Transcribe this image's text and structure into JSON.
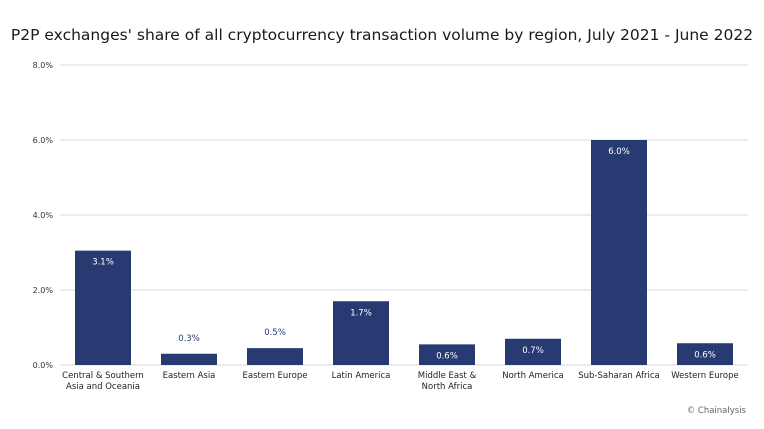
{
  "chart_data": {
    "type": "bar",
    "title": "P2P exchanges' share of all cryptocurrency transaction volume by region, July 2021 - June 2022",
    "categories": [
      "Central & Southern Asia and Oceania",
      "Eastern Asia",
      "Eastern Europe",
      "Latin America",
      "Middle East & North Africa",
      "North America",
      "Sub-Saharan Africa",
      "Western Europe"
    ],
    "category_lines": [
      [
        "Central & Southern",
        "Asia and Oceania"
      ],
      [
        "Eastern Asia"
      ],
      [
        "Eastern Europe"
      ],
      [
        "Latin America"
      ],
      [
        "Middle East &",
        "North Africa"
      ],
      [
        "North America"
      ],
      [
        "Sub-Saharan Africa"
      ],
      [
        "Western Europe"
      ]
    ],
    "values": [
      3.05,
      0.3,
      0.45,
      1.7,
      0.55,
      0.7,
      6.0,
      0.58
    ],
    "data_labels": [
      "3.1%",
      "0.3%",
      "0.5%",
      "1.7%",
      "0.6%",
      "0.7%",
      "6.0%",
      "0.6%"
    ],
    "ylim": [
      0,
      8
    ],
    "yticks": [
      0,
      2,
      4,
      6,
      8
    ],
    "ytick_labels": [
      "0.0%",
      "2.0%",
      "4.0%",
      "6.0%",
      "8.0%"
    ],
    "xlabel": "",
    "ylabel": "",
    "grid": true,
    "bar_color": "#283a72",
    "gridline_color": "#d9d9d9"
  },
  "credit": "© Chainalysis"
}
